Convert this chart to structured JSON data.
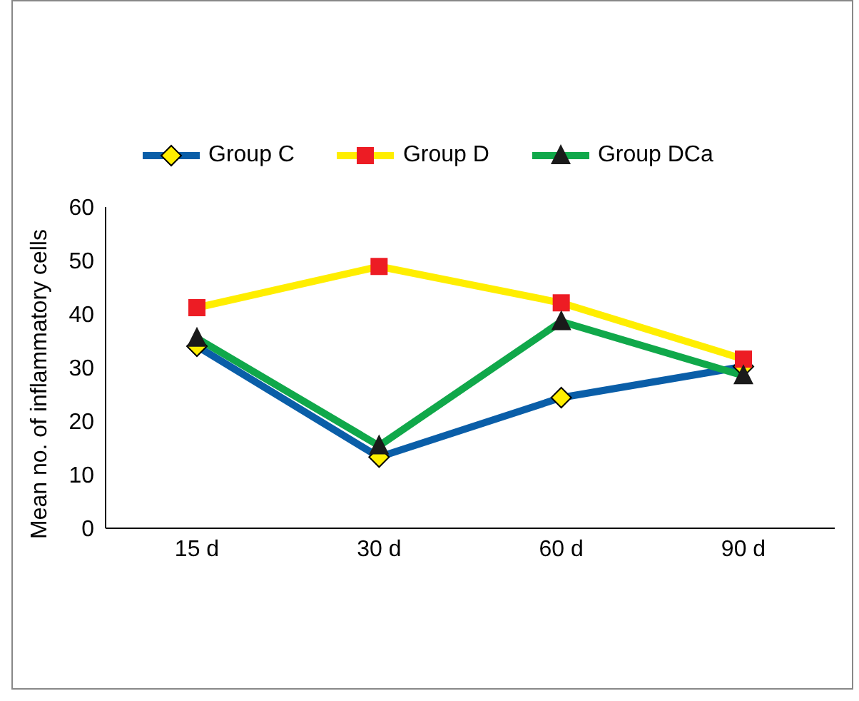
{
  "chart_data": {
    "type": "line",
    "ylabel": "Mean no. of inflammatory cells",
    "categories": [
      "15 d",
      "30 d",
      "60 d",
      "90 d"
    ],
    "ylim": [
      0,
      60
    ],
    "yticks": [
      0,
      10,
      20,
      30,
      40,
      50,
      60
    ],
    "grid": false,
    "legend": "top",
    "series": [
      {
        "name": "Group C",
        "color": "#0a5ea8",
        "marker": "diamond",
        "values": [
          34.0,
          13.3,
          24.4,
          30.2
        ]
      },
      {
        "name": "Group D",
        "color": "#ffee00",
        "marker": "square",
        "values": [
          41.2,
          48.9,
          42.1,
          31.6
        ]
      },
      {
        "name": "Group DCa",
        "color": "#10a84a",
        "marker": "triangle",
        "values": [
          35.5,
          15.4,
          38.6,
          28.5
        ]
      }
    ]
  }
}
